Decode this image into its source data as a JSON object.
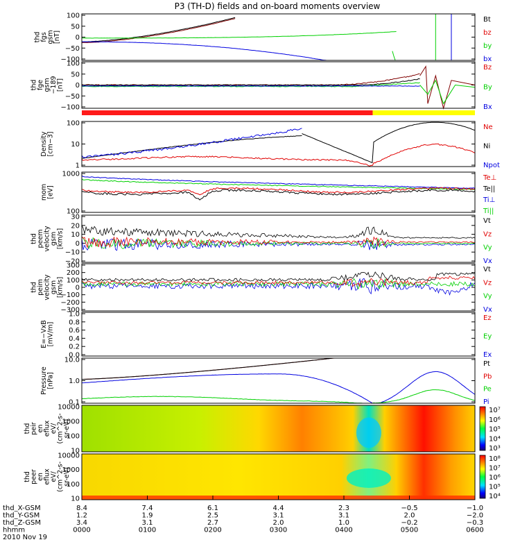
{
  "title": "P3 (TH-D) fields and on-board moments overview",
  "colors": {
    "black": "#000000",
    "red": "#e00000",
    "green": "#00d000",
    "blue": "#0000e0",
    "darkred": "#800000",
    "yellow": "#ffff00"
  },
  "chart_data": [
    {
      "type": "line",
      "ylabel_lines": [
        "thd",
        "fgs",
        "gsm",
        "[nT]"
      ],
      "yticks": [
        "100",
        "50",
        "0",
        "−50",
        "−100"
      ],
      "legend": [
        {
          "label": "Bt",
          "color": "#000000"
        },
        {
          "label": "bz",
          "color": "#e00000"
        },
        {
          "label": "by",
          "color": "#00d000"
        },
        {
          "label": "bx",
          "color": "#0000e0"
        }
      ]
    },
    {
      "type": "line",
      "ylabel_lines": [
        "thd",
        "fge",
        "gsm",
        "−189",
        "[nT]"
      ],
      "yticks": [
        "100",
        "50",
        "0",
        "−50",
        "−100"
      ],
      "legend": [
        {
          "label": "Bz",
          "color": "#e00000"
        },
        {
          "label": "By",
          "color": "#00d000"
        },
        {
          "label": "Bx",
          "color": "#0000e0"
        }
      ]
    },
    {
      "type": "line",
      "ylabel_lines": [
        "Density",
        "[cm−3]"
      ],
      "yticks": [
        "100",
        "10",
        "1"
      ],
      "legend": [
        {
          "label": "Ne",
          "color": "#e00000"
        },
        {
          "label": "Ni",
          "color": "#000000"
        },
        {
          "label": "Npot",
          "color": "#0000e0"
        }
      ]
    },
    {
      "type": "line",
      "ylabel_lines": [
        "mom",
        "[eV]"
      ],
      "yticks": [
        "1000",
        "100"
      ],
      "legend": [
        {
          "label": "Te⊥",
          "color": "#e00000"
        },
        {
          "label": "Te||",
          "color": "#000000"
        },
        {
          "label": "Ti⊥",
          "color": "#0000e0"
        },
        {
          "label": "Ti||",
          "color": "#00d000"
        }
      ]
    },
    {
      "type": "line",
      "ylabel_lines": [
        "thd",
        "peem",
        "velocity",
        "gsm",
        "[km/s]"
      ],
      "yticks": [
        "30",
        "20",
        "10",
        "0",
        "−10",
        "−20"
      ],
      "legend": [
        {
          "label": "Vt",
          "color": "#000000"
        },
        {
          "label": "Vz",
          "color": "#e00000"
        },
        {
          "label": "Vy",
          "color": "#00d000"
        },
        {
          "label": "Vx",
          "color": "#0000e0"
        }
      ]
    },
    {
      "type": "line",
      "ylabel_lines": [
        "thd",
        "peim",
        "velocity",
        "gsm",
        "[km/s]"
      ],
      "yticks": [
        "300",
        "200",
        "100",
        "0",
        "−100",
        "−200",
        "−300"
      ],
      "legend": [
        {
          "label": "Vt",
          "color": "#000000"
        },
        {
          "label": "Vz",
          "color": "#e00000"
        },
        {
          "label": "Vy",
          "color": "#00d000"
        },
        {
          "label": "Vx",
          "color": "#0000e0"
        }
      ]
    },
    {
      "type": "line",
      "ylabel_lines": [
        "E=−VxB",
        "[mV/m]"
      ],
      "yticks": [
        "1.0",
        "0.8",
        "0.6",
        "0.4",
        "0.2",
        "0.0"
      ],
      "legend": [
        {
          "label": "Ez",
          "color": "#e00000"
        },
        {
          "label": "Ey",
          "color": "#00d000"
        },
        {
          "label": "Ex",
          "color": "#0000e0"
        }
      ]
    },
    {
      "type": "line",
      "ylabel_lines": [
        "Pressure",
        "[nPa]"
      ],
      "yticks": [
        "10.0",
        "1.0",
        "0.1"
      ],
      "legend": [
        {
          "label": "Pt",
          "color": "#000000"
        },
        {
          "label": "Pb",
          "color": "#e00000"
        },
        {
          "label": "Pe",
          "color": "#00d000"
        },
        {
          "label": "Pi",
          "color": "#0000e0"
        }
      ]
    },
    {
      "type": "heatmap",
      "ylabel_lines": [
        "thd",
        "peir",
        "en",
        "eflux",
        "eV/",
        "(cm^2-s-",
        "sr-eV)"
      ],
      "yticks": [
        "10000",
        "1000",
        "100",
        "10"
      ],
      "cbar_ticks": [
        "10⁷",
        "10⁶",
        "10⁵",
        "10⁴",
        "10³"
      ]
    },
    {
      "type": "heatmap",
      "ylabel_lines": [
        "thd",
        "peer",
        "en",
        "eflux",
        "eV/",
        "(cm^2-s-",
        "sr-eV)"
      ],
      "yticks": [
        "10000",
        "1000",
        "100",
        "10"
      ],
      "cbar_ticks": [
        "10⁸",
        "10⁷",
        "10⁶",
        "10⁵",
        "10⁴"
      ]
    }
  ],
  "time_axis": {
    "rows": [
      {
        "label": "thd_X-GSM",
        "values": [
          "8.4",
          "7.4",
          "6.1",
          "4.4",
          "2.3",
          "−0.5",
          "−1.0"
        ]
      },
      {
        "label": "thd_Y-GSM",
        "values": [
          "1.2",
          "1.9",
          "2.5",
          "3.1",
          "3.1",
          "2.0",
          "−2.0"
        ]
      },
      {
        "label": "thd_Z-GSM",
        "values": [
          "3.4",
          "3.1",
          "2.7",
          "2.0",
          "1.0",
          "−0.2",
          "−0.3"
        ]
      },
      {
        "label": "hhmm",
        "values": [
          "0000",
          "0100",
          "0200",
          "0300",
          "0400",
          "0500",
          "0600"
        ]
      }
    ],
    "date": "2010 Nov 19"
  }
}
